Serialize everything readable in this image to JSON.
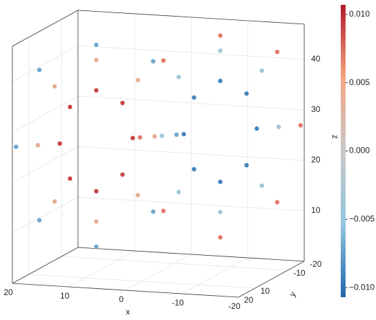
{
  "chart_data": {
    "type": "scatter3d",
    "x_label": "x",
    "y_label": "y",
    "z_label": "z",
    "xlim": [
      -20,
      20
    ],
    "ylim": [
      -20,
      20
    ],
    "zlim": [
      0,
      47
    ],
    "xticks": [
      20,
      10,
      0,
      -10,
      -20
    ],
    "yticks": [
      -20,
      -10,
      10,
      20
    ],
    "zticks": [
      10,
      20,
      30,
      40
    ],
    "clim": [
      -0.0107,
      0.0107
    ],
    "cticks": [
      {
        "value": 0.01,
        "label": "0.010"
      },
      {
        "value": 0.005,
        "label": "0.005"
      },
      {
        "value": 0,
        "label": "0.000"
      },
      {
        "value": -0.005,
        "label": "−0.005"
      },
      {
        "value": -0.01,
        "label": "−0.010"
      }
    ],
    "colormap": [
      "#2166ac",
      "#92c5de",
      "#c8c8c8",
      "#f4a582",
      "#b2182b"
    ],
    "grid": true,
    "x": [
      13.5,
      12.1,
      8.5,
      4.9,
      3.5,
      4.9,
      8.5,
      12.1,
      16.5,
      14.2,
      8.5,
      2.8,
      0.5,
      2.8,
      8.5,
      14.2,
      19.5,
      16.3,
      8.5,
      0.7,
      -2.5,
      0.7,
      8.5,
      16.3,
      -13.5,
      -12.1,
      -8.5,
      -4.9,
      -3.5,
      -4.9,
      -8.5,
      -12.1,
      -16.5,
      -14.2,
      -8.5,
      -2.8,
      -0.5,
      -2.8,
      -8.5,
      -14.2,
      -19.5,
      -16.3,
      -8.5,
      -0.7,
      2.5,
      -0.7,
      -8.5,
      -16.3
    ],
    "y": [
      13.5,
      12.1,
      8.5,
      4.9,
      3.5,
      4.9,
      8.5,
      12.1,
      16.5,
      14.2,
      8.5,
      2.8,
      0.5,
      2.8,
      8.5,
      14.2,
      19.5,
      16.3,
      8.5,
      0.7,
      -2.5,
      0.7,
      8.5,
      16.3,
      -13.5,
      -12.1,
      -8.5,
      -4.9,
      -3.5,
      -4.9,
      -8.5,
      -12.1,
      -16.5,
      -14.2,
      -8.5,
      -2.8,
      -0.5,
      -2.8,
      -8.5,
      -14.2,
      -19.5,
      -16.3,
      -8.5,
      -0.7,
      2.5,
      -0.7,
      -8.5,
      -16.3
    ],
    "z": [
      27,
      34.1,
      37,
      34.1,
      27,
      19.9,
      17,
      19.9,
      27,
      38.4,
      43,
      38.4,
      27,
      15.6,
      11,
      15.6,
      27,
      41.9,
      46,
      41.9,
      27,
      12.1,
      6,
      12.1,
      27,
      34.1,
      37,
      34.1,
      27,
      19.9,
      17,
      19.9,
      27,
      38.4,
      43,
      38.4,
      27,
      15.6,
      11,
      15.6,
      27,
      41.9,
      46,
      41.9,
      27,
      12.1,
      6,
      12.1
    ],
    "values": [
      0.009,
      0.009,
      0.009,
      0.009,
      0.009,
      0.009,
      0.009,
      0.009,
      0.004,
      0.004,
      0.004,
      0.004,
      0.004,
      0.004,
      0.004,
      0.004,
      -0.007,
      -0.007,
      -0.007,
      -0.007,
      -0.007,
      -0.007,
      -0.007,
      -0.007,
      -0.009,
      -0.009,
      -0.009,
      -0.009,
      -0.009,
      -0.009,
      -0.009,
      -0.009,
      -0.004,
      -0.004,
      -0.004,
      -0.004,
      -0.004,
      -0.004,
      -0.004,
      -0.004,
      0.007,
      0.007,
      0.007,
      0.007,
      0.007,
      0.007,
      0.007,
      0.007
    ]
  }
}
